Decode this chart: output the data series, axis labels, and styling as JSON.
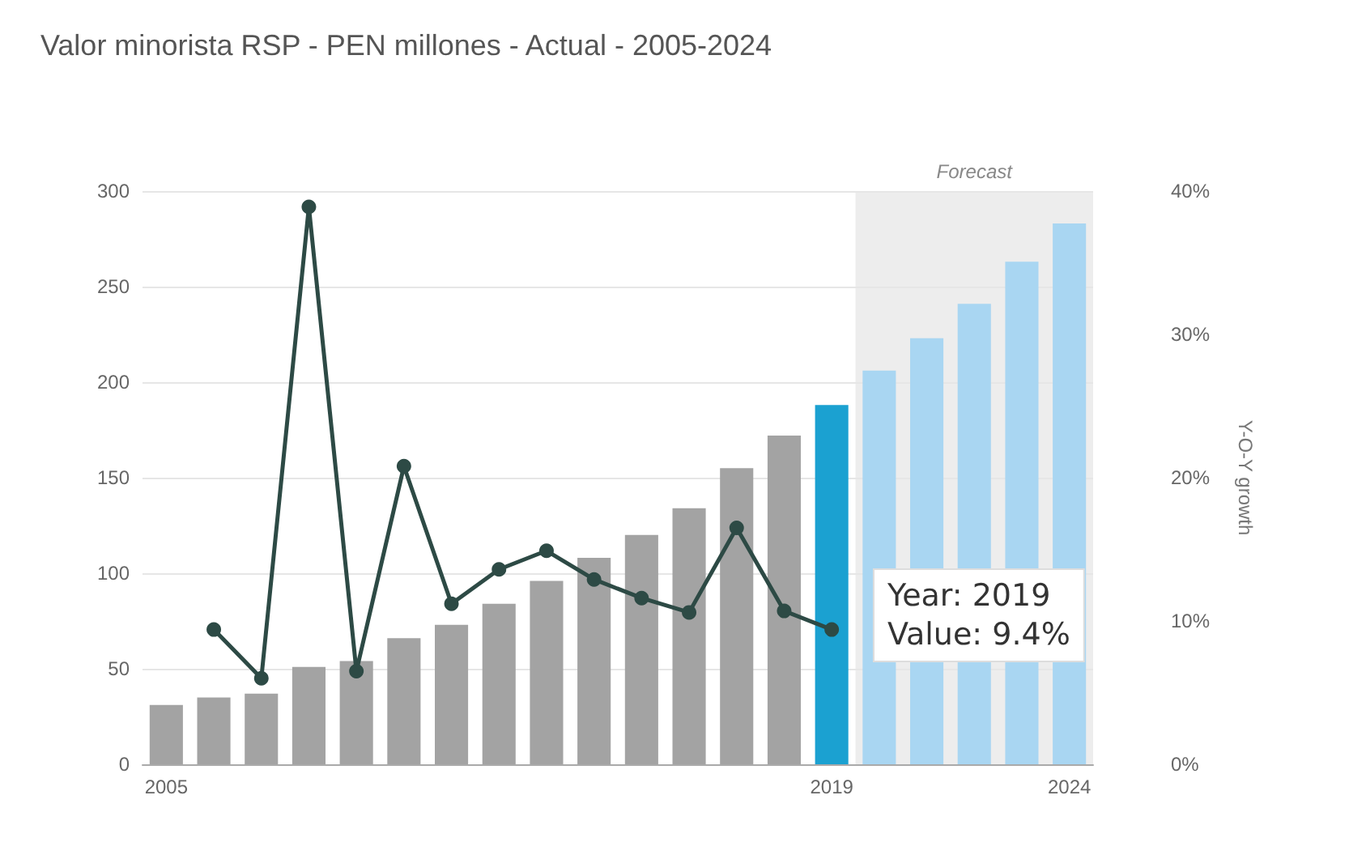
{
  "chart_data": {
    "type": "bar",
    "title": "Valor minorista RSP - PEN millones - Actual - 2005-2024",
    "y2label": "Y-O-Y growth",
    "categories": [
      "2005",
      null,
      null,
      null,
      null,
      null,
      null,
      null,
      null,
      null,
      null,
      null,
      null,
      null,
      "2019",
      null,
      null,
      null,
      null,
      "2024"
    ],
    "series": [
      {
        "colors": [
          "#a3a3a3",
          "#a3a3a3",
          "#a3a3a3",
          "#a3a3a3",
          "#a3a3a3",
          "#a3a3a3",
          "#a3a3a3",
          "#a3a3a3",
          "#a3a3a3",
          "#a3a3a3",
          "#a3a3a3",
          "#a3a3a3",
          "#a3a3a3",
          "#a3a3a3",
          "#1ba1d1",
          "#a9d6f2",
          "#a9d6f2",
          "#a9d6f2",
          "#a9d6f2",
          "#a9d6f2"
        ],
        "values": [
          31,
          35,
          37,
          51,
          54,
          66,
          73,
          84,
          96,
          108,
          120,
          134,
          155,
          172,
          188,
          206,
          223,
          241,
          263,
          283
        ]
      },
      {
        "type": "line",
        "axis": "y2",
        "color": "#2d4a45",
        "values": [
          null,
          9.4,
          6.0,
          38.9,
          6.5,
          20.8,
          11.2,
          13.6,
          14.9,
          12.9,
          11.6,
          10.6,
          16.5,
          10.7,
          9.4,
          null,
          null,
          null,
          null,
          null
        ]
      }
    ],
    "ylim": [
      0,
      300
    ],
    "yticks": [
      0,
      50,
      100,
      150,
      200,
      250,
      300
    ],
    "y2lim": [
      0,
      40
    ],
    "y2ticks": [
      {
        "value": 0,
        "label": "0%"
      },
      {
        "value": 10,
        "label": "10%"
      },
      {
        "value": 20,
        "label": "20%"
      },
      {
        "value": 30,
        "label": "30%"
      },
      {
        "value": 40,
        "label": "40%"
      }
    ],
    "annotations": [
      "Forecast",
      "Year: 2019\nValue: 9.4%"
    ],
    "grid": "y",
    "marker": "circle",
    "line_style": "solid"
  }
}
